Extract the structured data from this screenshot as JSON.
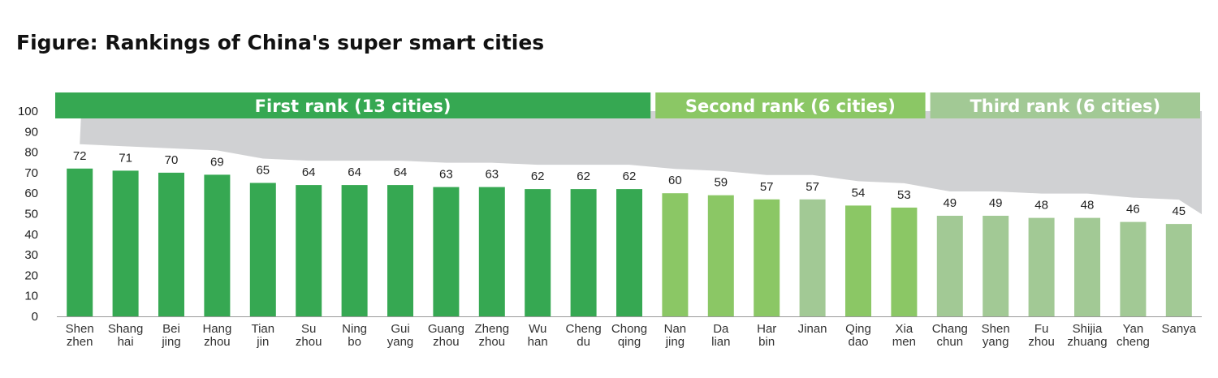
{
  "title": "Figure: Rankings of China's super smart cities",
  "chart_data": {
    "type": "bar",
    "title": "Figure: Rankings of China's super smart cities",
    "xlabel": "",
    "ylabel": "",
    "ylim": [
      0,
      100
    ],
    "yticks": [
      0,
      10,
      20,
      30,
      40,
      50,
      60,
      70,
      80,
      90,
      100
    ],
    "grid": false,
    "categories": [
      [
        "Shen",
        "zhen"
      ],
      [
        "Shang",
        "hai"
      ],
      [
        "Bei",
        "jing"
      ],
      [
        "Hang",
        "zhou"
      ],
      [
        "Tian",
        "jin"
      ],
      [
        "Su",
        "zhou"
      ],
      [
        "Ning",
        "bo"
      ],
      [
        "Gui",
        "yang"
      ],
      [
        "Guang",
        "zhou"
      ],
      [
        "Zheng",
        "zhou"
      ],
      [
        "Wu",
        "han"
      ],
      [
        "Cheng",
        "du"
      ],
      [
        "Chong",
        "qing"
      ],
      [
        "Nan",
        "jing"
      ],
      [
        "Da",
        "lian"
      ],
      [
        "Har",
        "bin"
      ],
      [
        "Jinan"
      ],
      [
        "Qing",
        "dao"
      ],
      [
        "Xia",
        "men"
      ],
      [
        "Chang",
        "chun"
      ],
      [
        "Shen",
        "yang"
      ],
      [
        "Fu",
        "zhou"
      ],
      [
        "Shijia",
        "zhuang"
      ],
      [
        "Yan",
        "cheng"
      ],
      [
        "Sanya"
      ]
    ],
    "values": [
      72,
      71,
      70,
      69,
      65,
      64,
      64,
      64,
      63,
      63,
      62,
      62,
      62,
      60,
      59,
      57,
      57,
      54,
      53,
      49,
      49,
      48,
      48,
      46,
      45
    ],
    "bar_colors": [
      "#36a852",
      "#36a852",
      "#36a852",
      "#36a852",
      "#36a852",
      "#36a852",
      "#36a852",
      "#36a852",
      "#36a852",
      "#36a852",
      "#36a852",
      "#36a852",
      "#36a852",
      "#8bc765",
      "#8bc765",
      "#8bc765",
      "#a2c995",
      "#8bc765",
      "#8bc765",
      "#a2c995",
      "#a2c995",
      "#a2c995",
      "#a2c995",
      "#a2c995",
      "#a2c995"
    ],
    "bands": [
      {
        "label": "First rank (13 cities)",
        "start": 0,
        "end": 12,
        "color": "#36a852"
      },
      {
        "label": "Second rank (6 cities)",
        "start": 13,
        "end": 18,
        "color": "#8bc765"
      },
      {
        "label": "Third rank (6 cities)",
        "start": 19,
        "end": 24,
        "color": "#a2c995"
      }
    ],
    "trend_fill_color": "#d0d1d3"
  }
}
